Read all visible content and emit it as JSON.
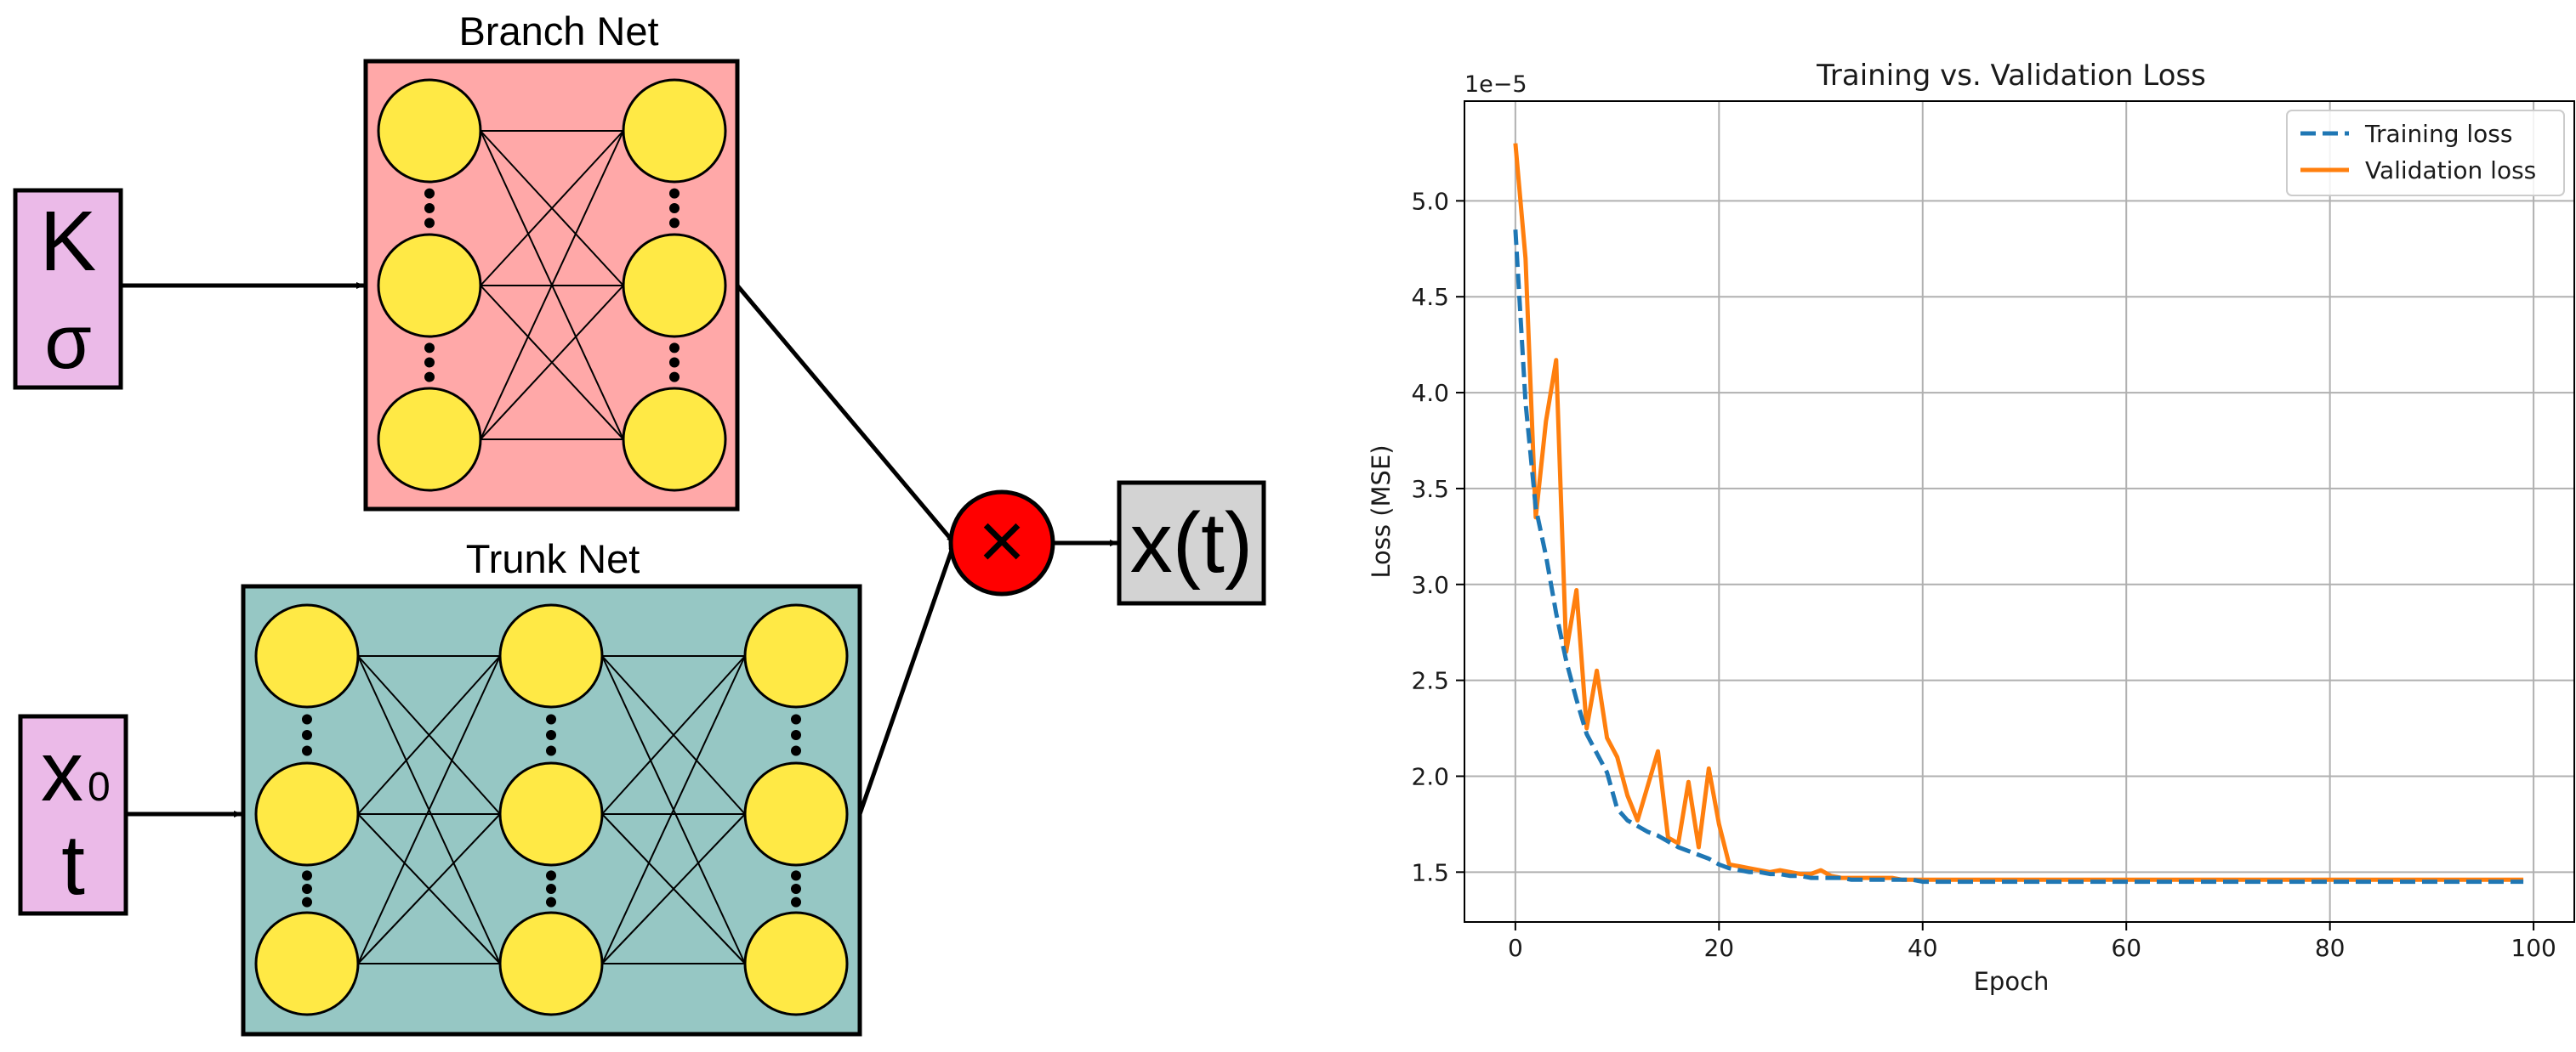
{
  "diagram": {
    "branch_title": "Branch Net",
    "trunk_title": "Trunk Net",
    "branch_input": {
      "line1": "K",
      "line2": "σ"
    },
    "trunk_input": {
      "line1": "x",
      "line1_sub": "0",
      "line2": "t"
    },
    "operator_symbol": "×",
    "output_label": "x(t)",
    "colors": {
      "branch_fill": "#ffa8a8",
      "trunk_fill": "#96c7c4",
      "input_fill": "#ebbae8",
      "node_fill": "#ffe945",
      "operator_fill": "#ff0000",
      "output_fill": "#d3d3d3"
    }
  },
  "chart_data": {
    "type": "line",
    "title": "Training vs. Validation Loss",
    "xlabel": "Epoch",
    "ylabel": "Loss (MSE)",
    "y_scale_label": "1e−5",
    "xlim": [
      -5,
      104
    ],
    "ylim": [
      1.24,
      5.52
    ],
    "x_ticks": [
      0,
      20,
      40,
      60,
      80,
      100
    ],
    "y_ticks": [
      1.5,
      2.0,
      2.5,
      3.0,
      3.5,
      4.0,
      4.5,
      5.0
    ],
    "grid": true,
    "legend_position": "top-right",
    "series": [
      {
        "name": "Training loss",
        "color": "#1f77b4",
        "style": "dashed",
        "x": [
          0,
          1,
          2,
          3,
          4,
          5,
          6,
          7,
          8,
          9,
          10,
          11,
          12,
          13,
          14,
          15,
          16,
          17,
          18,
          19,
          20,
          21,
          22,
          23,
          24,
          25,
          26,
          27,
          28,
          29,
          30,
          31,
          32,
          33,
          34,
          35,
          36,
          37,
          38,
          39,
          40,
          41,
          42,
          43,
          44,
          45,
          46,
          47,
          48,
          49,
          50,
          51,
          52,
          53,
          54,
          55,
          56,
          57,
          58,
          59,
          60,
          61,
          62,
          63,
          64,
          65,
          66,
          67,
          68,
          69,
          70,
          71,
          72,
          73,
          74,
          75,
          76,
          77,
          78,
          79,
          80,
          81,
          82,
          83,
          84,
          85,
          86,
          87,
          88,
          89,
          90,
          91,
          92,
          93,
          94,
          95,
          96,
          97,
          98,
          99
        ],
        "y": [
          4.85,
          3.95,
          3.4,
          3.15,
          2.85,
          2.6,
          2.4,
          2.22,
          2.12,
          2.02,
          1.83,
          1.77,
          1.74,
          1.71,
          1.69,
          1.66,
          1.63,
          1.61,
          1.59,
          1.57,
          1.54,
          1.52,
          1.51,
          1.5,
          1.5,
          1.49,
          1.49,
          1.48,
          1.48,
          1.47,
          1.47,
          1.47,
          1.47,
          1.46,
          1.46,
          1.46,
          1.46,
          1.46,
          1.46,
          1.46,
          1.45,
          1.45,
          1.45,
          1.45,
          1.45,
          1.45,
          1.45,
          1.45,
          1.45,
          1.45,
          1.45,
          1.45,
          1.45,
          1.45,
          1.45,
          1.45,
          1.45,
          1.45,
          1.45,
          1.45,
          1.45,
          1.45,
          1.45,
          1.45,
          1.45,
          1.45,
          1.45,
          1.45,
          1.45,
          1.45,
          1.45,
          1.45,
          1.45,
          1.45,
          1.45,
          1.45,
          1.45,
          1.45,
          1.45,
          1.45,
          1.45,
          1.45,
          1.45,
          1.45,
          1.45,
          1.45,
          1.45,
          1.45,
          1.45,
          1.45,
          1.45,
          1.45,
          1.45,
          1.45,
          1.45,
          1.45,
          1.45,
          1.45,
          1.45,
          1.45
        ]
      },
      {
        "name": "Validation loss",
        "color": "#ff7f0e",
        "style": "solid",
        "x": [
          0,
          1,
          2,
          3,
          4,
          5,
          6,
          7,
          8,
          9,
          10,
          11,
          12,
          13,
          14,
          15,
          16,
          17,
          18,
          19,
          20,
          21,
          22,
          23,
          24,
          25,
          26,
          27,
          28,
          29,
          30,
          31,
          32,
          33,
          34,
          35,
          36,
          37,
          38,
          39,
          40,
          41,
          42,
          43,
          44,
          45,
          46,
          47,
          48,
          49,
          50,
          51,
          52,
          53,
          54,
          55,
          56,
          57,
          58,
          59,
          60,
          61,
          62,
          63,
          64,
          65,
          66,
          67,
          68,
          69,
          70,
          71,
          72,
          73,
          74,
          75,
          76,
          77,
          78,
          79,
          80,
          81,
          82,
          83,
          84,
          85,
          86,
          87,
          88,
          89,
          90,
          91,
          92,
          93,
          94,
          95,
          96,
          97,
          98,
          99
        ],
        "y": [
          5.3,
          4.7,
          3.35,
          3.85,
          4.17,
          2.65,
          2.97,
          2.25,
          2.55,
          2.2,
          2.1,
          1.9,
          1.77,
          1.95,
          2.13,
          1.68,
          1.65,
          1.97,
          1.63,
          2.04,
          1.75,
          1.54,
          1.53,
          1.52,
          1.51,
          1.5,
          1.51,
          1.5,
          1.49,
          1.49,
          1.51,
          1.48,
          1.47,
          1.47,
          1.47,
          1.47,
          1.47,
          1.47,
          1.46,
          1.46,
          1.46,
          1.46,
          1.46,
          1.46,
          1.46,
          1.46,
          1.46,
          1.46,
          1.46,
          1.46,
          1.46,
          1.46,
          1.46,
          1.46,
          1.46,
          1.46,
          1.46,
          1.46,
          1.46,
          1.46,
          1.46,
          1.46,
          1.46,
          1.46,
          1.46,
          1.46,
          1.46,
          1.46,
          1.46,
          1.46,
          1.46,
          1.46,
          1.46,
          1.46,
          1.46,
          1.46,
          1.46,
          1.46,
          1.46,
          1.46,
          1.46,
          1.46,
          1.46,
          1.46,
          1.46,
          1.46,
          1.46,
          1.46,
          1.46,
          1.46,
          1.46,
          1.46,
          1.46,
          1.46,
          1.46,
          1.46,
          1.46,
          1.46,
          1.46,
          1.46
        ]
      }
    ]
  }
}
